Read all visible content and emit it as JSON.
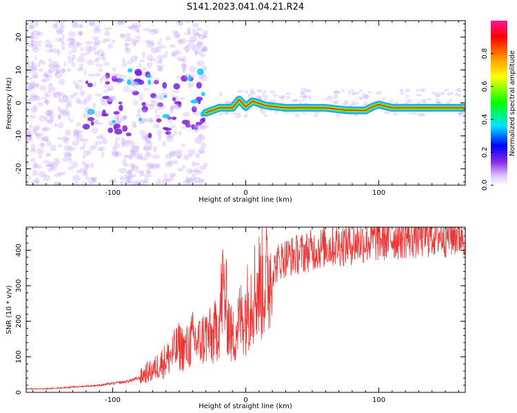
{
  "title": "S141.2023.041.04.21.R24",
  "colors": {
    "snr_line": "#ee3333",
    "axis": "#000000",
    "background": "#ffffff",
    "colormap": [
      "#ffffff",
      "#e8d8ff",
      "#8a2be2",
      "#0000ff",
      "#00e5ff",
      "#00ff00",
      "#ffff00",
      "#ff8c00",
      "#ff0000",
      "#ff1493"
    ]
  },
  "chart_data": [
    {
      "type": "heatmap",
      "xlabel": "Height of straight line (km)",
      "ylabel": "Frequency (Hz)",
      "xlim": [
        -165,
        165
      ],
      "ylim": [
        -25,
        25
      ],
      "xticks": [
        -100,
        0,
        100
      ],
      "yticks": [
        -20,
        -10,
        0,
        10,
        20
      ],
      "colorbar": {
        "label": "Normalized spectral amplitude",
        "range": [
          0,
          1
        ],
        "ticks": [
          0.0,
          0.2,
          0.4,
          0.6,
          0.8
        ]
      },
      "signal_trace": {
        "description_points_x": [
          -30,
          -20,
          -10,
          -5,
          0,
          5,
          15,
          30,
          60,
          75,
          90,
          95,
          100,
          110,
          140,
          165
        ],
        "frequency_hz": [
          -3,
          -1.5,
          -1.5,
          1,
          -1.2,
          0.5,
          -0.8,
          -1.5,
          -1.5,
          -2.2,
          -2.3,
          -1.2,
          -0.5,
          -1.5,
          -1.5,
          -1.5
        ]
      }
    },
    {
      "type": "line",
      "xlabel": "Height of straight line (km)",
      "ylabel": "SNR (10 * v/v)",
      "xlim": [
        -165,
        165
      ],
      "ylim": [
        0,
        465
      ],
      "xticks": [
        -100,
        0,
        100
      ],
      "yticks": [
        0,
        100,
        200,
        300,
        400
      ],
      "series": [
        {
          "x": [
            -165,
            -150,
            -130,
            -110,
            -100,
            -90,
            -80,
            -75,
            -70,
            -65,
            -60,
            -55,
            -50,
            -45,
            -40,
            -35,
            -30,
            -25,
            -20,
            -17,
            -15,
            -12,
            -10,
            -5,
            0,
            5,
            10,
            15,
            20,
            25,
            30,
            40,
            50,
            60,
            70,
            80,
            90,
            100,
            110,
            120,
            130,
            140,
            150,
            160,
            165
          ],
          "values": [
            10,
            10,
            15,
            20,
            25,
            30,
            40,
            55,
            60,
            80,
            90,
            110,
            130,
            120,
            150,
            140,
            160,
            150,
            200,
            300,
            250,
            180,
            150,
            200,
            230,
            280,
            300,
            310,
            340,
            370,
            380,
            390,
            400,
            410,
            415,
            420,
            425,
            430,
            435,
            440,
            440,
            445,
            445,
            445,
            445
          ]
        }
      ]
    }
  ]
}
